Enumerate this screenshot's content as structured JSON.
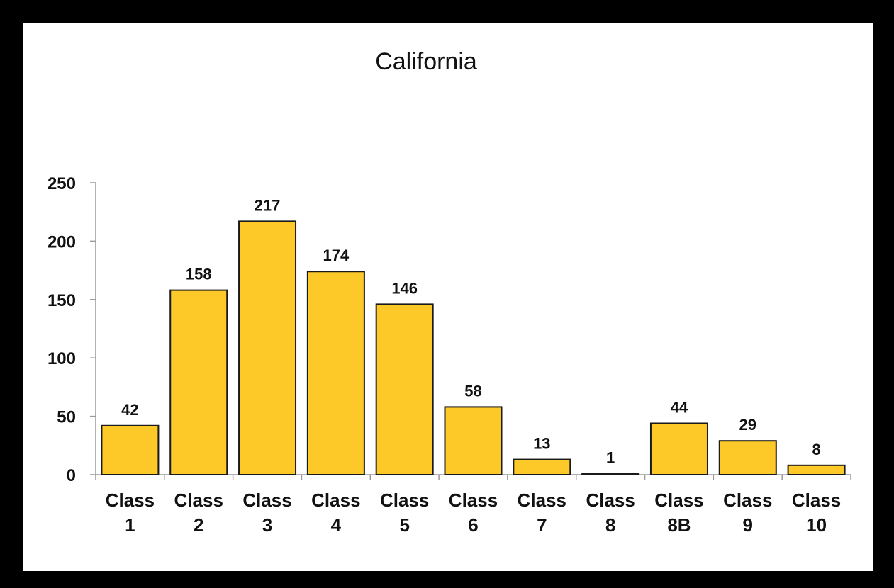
{
  "colors": {
    "frame": "#000000",
    "panel": "#ffffff",
    "bar_fill": "#fcc928",
    "bar_stroke": "#1a1a1a",
    "axis": "#999999",
    "text": "#111111"
  },
  "chart_data": {
    "type": "bar",
    "title": "California",
    "xlabel": "",
    "ylabel": "",
    "categories": [
      [
        "Class",
        "1"
      ],
      [
        "Class",
        "2"
      ],
      [
        "Class",
        "3"
      ],
      [
        "Class",
        "4"
      ],
      [
        "Class",
        "5"
      ],
      [
        "Class",
        "6"
      ],
      [
        "Class",
        "7"
      ],
      [
        "Class",
        "8"
      ],
      [
        "Class",
        "8B"
      ],
      [
        "Class",
        "9"
      ],
      [
        "Class",
        "10"
      ]
    ],
    "values": [
      42,
      158,
      217,
      174,
      146,
      58,
      13,
      1,
      44,
      29,
      8
    ],
    "ylim": [
      0,
      250
    ],
    "yticks": [
      0,
      50,
      100,
      150,
      200,
      250
    ],
    "grid": false,
    "data_labels": true
  }
}
